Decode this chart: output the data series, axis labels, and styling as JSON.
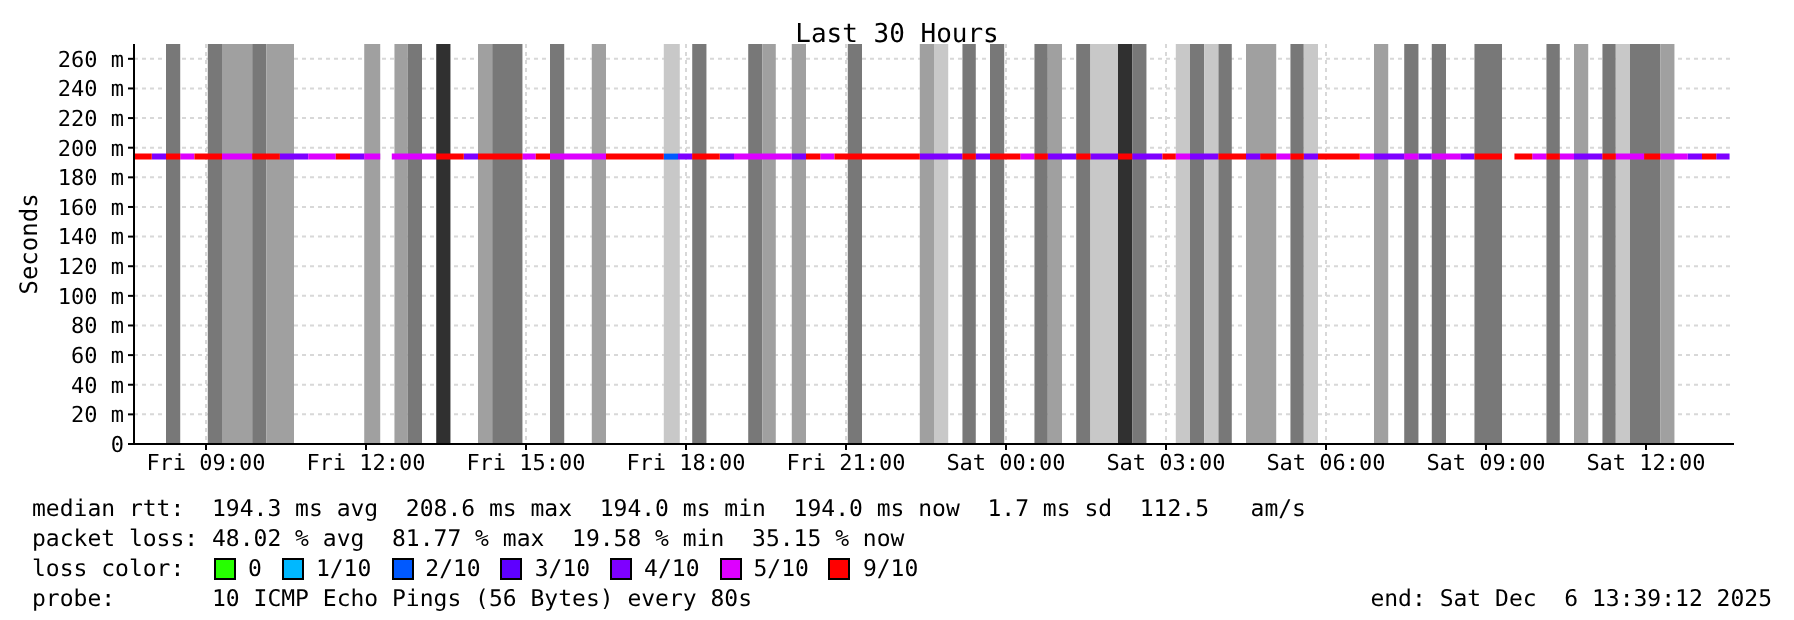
{
  "chart_data": {
    "type": "line",
    "title": "Last 30 Hours",
    "ylabel": "Seconds",
    "legend_title": "loss color:",
    "legend": "bottom",
    "grid": true,
    "marker": "none",
    "line_style": "solid",
    "xlim": [
      "2025-12-05T07:39",
      "2025-12-06T13:39"
    ],
    "xticks": [
      {
        "value": "2025-12-05T09:00",
        "label": "Fri 09:00"
      },
      {
        "value": "2025-12-05T12:00",
        "label": "Fri 12:00"
      },
      {
        "value": "2025-12-05T15:00",
        "label": "Fri 15:00"
      },
      {
        "value": "2025-12-05T18:00",
        "label": "Fri 18:00"
      },
      {
        "value": "2025-12-05T21:00",
        "label": "Fri 21:00"
      },
      {
        "value": "2025-12-06T00:00",
        "label": "Sat 00:00"
      },
      {
        "value": "2025-12-06T03:00",
        "label": "Sat 03:00"
      },
      {
        "value": "2025-12-06T06:00",
        "label": "Sat 06:00"
      },
      {
        "value": "2025-12-06T09:00",
        "label": "Sat 09:00"
      },
      {
        "value": "2025-12-06T12:00",
        "label": "Sat 12:00"
      }
    ],
    "ylim": [
      0,
      270
    ],
    "yticks": [
      0,
      {
        "value": 20,
        "label": "20 m"
      },
      {
        "value": 40,
        "label": "40 m"
      },
      {
        "value": 60,
        "label": "60 m"
      },
      {
        "value": 80,
        "label": "80 m"
      },
      {
        "value": 100,
        "label": "100 m"
      },
      {
        "value": 120,
        "label": "120 m"
      },
      {
        "value": 140,
        "label": "140 m"
      },
      {
        "value": 160,
        "label": "160 m"
      },
      {
        "value": 180,
        "label": "180 m"
      },
      {
        "value": 200,
        "label": "200 m"
      },
      {
        "value": 220,
        "label": "220 m"
      },
      {
        "value": 240,
        "label": "240 m"
      },
      {
        "value": 260,
        "label": "260 m"
      }
    ],
    "series": [
      {
        "name": "0",
        "color": "#26ff00"
      },
      {
        "name": "1/10",
        "color": "#00b8ff"
      },
      {
        "name": "2/10",
        "color": "#0059ff",
        "x": [
          "2025-12-05T17:35",
          "2025-12-05T17:51"
        ],
        "values": [
          194,
          194
        ]
      },
      {
        "name": "3/10",
        "color": "#5e00ff"
      },
      {
        "name": "4/10",
        "color": "#7e00ff",
        "x": [
          "2025-12-05T07:59",
          "2025-12-05T08:15",
          null,
          "2025-12-05T10:23",
          "2025-12-05T10:55",
          null,
          "2025-12-05T11:42",
          "2025-12-05T11:58",
          null,
          "2025-12-05T13:50",
          "2025-12-05T14:06",
          null,
          "2025-12-05T17:51",
          "2025-12-05T18:07",
          null,
          "2025-12-05T18:38",
          "2025-12-05T18:54",
          null,
          "2025-12-05T19:59",
          "2025-12-05T20:15",
          null,
          "2025-12-05T22:23",
          "2025-12-05T23:11",
          null,
          "2025-12-05T23:26",
          "2025-12-05T23:42",
          null,
          "2025-12-06T00:47",
          "2025-12-06T01:19",
          null,
          "2025-12-06T01:35",
          "2025-12-06T02:06",
          null,
          "2025-12-06T02:22",
          "2025-12-06T02:56",
          null,
          "2025-12-06T03:27",
          "2025-12-06T03:59",
          null,
          "2025-12-06T04:30",
          "2025-12-06T04:46",
          null,
          "2025-12-06T05:35",
          "2025-12-06T05:51",
          null,
          "2025-12-06T06:54",
          "2025-12-06T07:28",
          null,
          "2025-12-06T07:44",
          "2025-12-06T07:59",
          null,
          "2025-12-06T08:31",
          "2025-12-06T08:47",
          null,
          "2025-12-06T10:39",
          "2025-12-06T11:11",
          null,
          "2025-12-06T12:47",
          "2025-12-06T13:03",
          null,
          "2025-12-06T13:19",
          "2025-12-06T13:34"
        ],
        "values": [
          194,
          194,
          null,
          194,
          194,
          null,
          194,
          194,
          null,
          194,
          194,
          null,
          194,
          194,
          null,
          194,
          194,
          null,
          194,
          194,
          null,
          194,
          194,
          null,
          194,
          194,
          null,
          194,
          194,
          null,
          194,
          194,
          null,
          194,
          194,
          null,
          194,
          194,
          null,
          194,
          194,
          null,
          194,
          194,
          null,
          194,
          194,
          null,
          194,
          194,
          null,
          194,
          194,
          null,
          194,
          194,
          null,
          194,
          194,
          null,
          194,
          194
        ]
      },
      {
        "name": "5/10",
        "color": "#dd00ff",
        "x": [
          "2025-12-05T08:31",
          "2025-12-05T08:47",
          null,
          "2025-12-05T09:18",
          "2025-12-05T09:52",
          null,
          "2025-12-05T10:55",
          "2025-12-05T11:26",
          null,
          "2025-12-05T11:58",
          "2025-12-05T12:16",
          null,
          "2025-12-05T12:29",
          "2025-12-05T13:19",
          null,
          "2025-12-05T14:56",
          "2025-12-05T15:11",
          null,
          "2025-12-05T15:27",
          "2025-12-05T16:30",
          null,
          "2025-12-05T18:54",
          "2025-12-05T19:59",
          null,
          "2025-12-05T20:31",
          "2025-12-05T20:47",
          null,
          "2025-12-06T00:16",
          "2025-12-06T00:32",
          null,
          "2025-12-06T03:11",
          "2025-12-06T03:27",
          null,
          "2025-12-06T05:04",
          "2025-12-06T05:20",
          null,
          "2025-12-06T06:38",
          "2025-12-06T06:54",
          null,
          "2025-12-06T07:28",
          "2025-12-06T07:44",
          null,
          "2025-12-06T07:59",
          "2025-12-06T08:31",
          null,
          "2025-12-06T09:52",
          "2025-12-06T10:08",
          null,
          "2025-12-06T10:23",
          "2025-12-06T10:39",
          null,
          "2025-12-06T11:26",
          "2025-12-06T11:58",
          null,
          "2025-12-06T12:16",
          "2025-12-06T12:47"
        ],
        "values": [
          194,
          194,
          null,
          194,
          194,
          null,
          194,
          194,
          null,
          194,
          194,
          null,
          194,
          194,
          null,
          194,
          194,
          null,
          194,
          194,
          null,
          194,
          194,
          null,
          194,
          194,
          null,
          194,
          194,
          null,
          194,
          194,
          null,
          194,
          194,
          null,
          194,
          194,
          null,
          194,
          194,
          null,
          194,
          194,
          null,
          194,
          194,
          null,
          194,
          194,
          null,
          194,
          194,
          null,
          194,
          194
        ]
      },
      {
        "name": "9/10",
        "color": "#ff0000",
        "x": [
          "2025-12-05T07:39",
          "2025-12-05T07:59",
          null,
          "2025-12-05T08:15",
          "2025-12-05T08:31",
          null,
          "2025-12-05T08:47",
          "2025-12-05T09:18",
          null,
          "2025-12-05T09:52",
          "2025-12-05T10:23",
          null,
          "2025-12-05T11:26",
          "2025-12-05T11:42",
          null,
          "2025-12-05T13:19",
          "2025-12-05T13:50",
          null,
          "2025-12-05T14:06",
          "2025-12-05T14:56",
          null,
          "2025-12-05T15:11",
          "2025-12-05T15:27",
          null,
          "2025-12-05T16:30",
          "2025-12-05T17:35",
          null,
          "2025-12-05T18:07",
          "2025-12-05T18:38",
          null,
          "2025-12-05T20:15",
          "2025-12-05T20:31",
          null,
          "2025-12-05T20:47",
          "2025-12-05T22:23",
          null,
          "2025-12-05T23:11",
          "2025-12-05T23:26",
          null,
          "2025-12-05T23:42",
          "2025-12-06T00:16",
          null,
          "2025-12-06T00:32",
          "2025-12-06T00:47",
          null,
          "2025-12-06T01:19",
          "2025-12-06T01:35",
          null,
          "2025-12-06T02:06",
          "2025-12-06T02:22",
          null,
          "2025-12-06T02:56",
          "2025-12-06T03:11",
          null,
          "2025-12-06T03:59",
          "2025-12-06T04:30",
          null,
          "2025-12-06T04:46",
          "2025-12-06T05:04",
          null,
          "2025-12-06T05:20",
          "2025-12-06T05:35",
          null,
          "2025-12-06T05:51",
          "2025-12-06T06:38",
          null,
          "2025-12-06T08:47",
          "2025-12-06T09:18",
          null,
          "2025-12-06T09:32",
          "2025-12-06T09:52",
          null,
          "2025-12-06T10:08",
          "2025-12-06T10:23",
          null,
          "2025-12-06T11:11",
          "2025-12-06T11:26",
          null,
          "2025-12-06T11:58",
          "2025-12-06T12:16",
          null,
          "2025-12-06T13:03",
          "2025-12-06T13:19"
        ],
        "values": [
          194,
          194,
          null,
          194,
          194,
          null,
          194,
          194,
          null,
          194,
          194,
          null,
          194,
          194,
          null,
          194,
          194,
          null,
          194,
          194,
          null,
          194,
          194,
          null,
          194,
          194,
          null,
          194,
          194,
          null,
          194,
          194,
          null,
          194,
          194,
          null,
          194,
          194,
          null,
          194,
          194,
          null,
          194,
          194,
          null,
          194,
          194,
          null,
          194,
          194,
          null,
          194,
          194,
          null,
          194,
          194,
          null,
          194,
          194,
          null,
          194,
          194,
          null,
          194,
          194,
          null,
          194,
          194,
          null,
          194,
          194,
          null,
          194,
          194,
          null,
          194,
          194,
          null,
          194,
          194,
          null,
          194,
          194
        ]
      }
    ],
    "bands": [
      {
        "axis": "x",
        "from": "2025-12-05T08:15",
        "to": "2025-12-05T08:31",
        "color": "#787878"
      },
      {
        "axis": "x",
        "from": "2025-12-05T09:02",
        "to": "2025-12-05T09:18",
        "color": "#787878"
      },
      {
        "axis": "x",
        "from": "2025-12-05T09:18",
        "to": "2025-12-05T09:52",
        "color": "#a0a0a0"
      },
      {
        "axis": "x",
        "from": "2025-12-05T09:52",
        "to": "2025-12-05T10:08",
        "color": "#787878"
      },
      {
        "axis": "x",
        "from": "2025-12-05T10:08",
        "to": "2025-12-05T10:39",
        "color": "#a0a0a0"
      },
      {
        "axis": "x",
        "from": "2025-12-05T11:58",
        "to": "2025-12-05T12:16",
        "color": "#a0a0a0"
      },
      {
        "axis": "x",
        "from": "2025-12-05T12:32",
        "to": "2025-12-05T12:47",
        "color": "#a0a0a0"
      },
      {
        "axis": "x",
        "from": "2025-12-05T12:47",
        "to": "2025-12-05T13:03",
        "color": "#787878"
      },
      {
        "axis": "x",
        "from": "2025-12-05T13:19",
        "to": "2025-12-05T13:35",
        "color": "#303030"
      },
      {
        "axis": "x",
        "from": "2025-12-05T14:06",
        "to": "2025-12-05T14:22",
        "color": "#a0a0a0"
      },
      {
        "axis": "x",
        "from": "2025-12-05T14:22",
        "to": "2025-12-05T14:56",
        "color": "#787878"
      },
      {
        "axis": "x",
        "from": "2025-12-05T15:27",
        "to": "2025-12-05T15:43",
        "color": "#787878"
      },
      {
        "axis": "x",
        "from": "2025-12-05T16:14",
        "to": "2025-12-05T16:30",
        "color": "#a0a0a0"
      },
      {
        "axis": "x",
        "from": "2025-12-05T17:35",
        "to": "2025-12-05T17:53",
        "color": "#c8c8c8"
      },
      {
        "axis": "x",
        "from": "2025-12-05T18:07",
        "to": "2025-12-05T18:23",
        "color": "#787878"
      },
      {
        "axis": "x",
        "from": "2025-12-05T19:10",
        "to": "2025-12-05T19:26",
        "color": "#787878"
      },
      {
        "axis": "x",
        "from": "2025-12-05T19:26",
        "to": "2025-12-05T19:41",
        "color": "#a0a0a0"
      },
      {
        "axis": "x",
        "from": "2025-12-05T19:59",
        "to": "2025-12-05T20:15",
        "color": "#a0a0a0"
      },
      {
        "axis": "x",
        "from": "2025-12-05T21:02",
        "to": "2025-12-05T21:18",
        "color": "#787878"
      },
      {
        "axis": "x",
        "from": "2025-12-05T22:23",
        "to": "2025-12-05T22:39",
        "color": "#a0a0a0"
      },
      {
        "axis": "x",
        "from": "2025-12-05T22:39",
        "to": "2025-12-05T22:55",
        "color": "#c8c8c8"
      },
      {
        "axis": "x",
        "from": "2025-12-05T23:11",
        "to": "2025-12-05T23:26",
        "color": "#787878"
      },
      {
        "axis": "x",
        "from": "2025-12-05T23:42",
        "to": "2025-12-05T23:58",
        "color": "#787878"
      },
      {
        "axis": "x",
        "from": "2025-12-06T00:32",
        "to": "2025-12-06T00:47",
        "color": "#787878"
      },
      {
        "axis": "x",
        "from": "2025-12-06T00:47",
        "to": "2025-12-06T01:03",
        "color": "#a0a0a0"
      },
      {
        "axis": "x",
        "from": "2025-12-06T01:19",
        "to": "2025-12-06T01:35",
        "color": "#787878"
      },
      {
        "axis": "x",
        "from": "2025-12-06T01:35",
        "to": "2025-12-06T02:06",
        "color": "#c8c8c8"
      },
      {
        "axis": "x",
        "from": "2025-12-06T02:06",
        "to": "2025-12-06T02:22",
        "color": "#303030"
      },
      {
        "axis": "x",
        "from": "2025-12-06T02:22",
        "to": "2025-12-06T02:38",
        "color": "#787878"
      },
      {
        "axis": "x",
        "from": "2025-12-06T03:11",
        "to": "2025-12-06T03:27",
        "color": "#c8c8c8"
      },
      {
        "axis": "x",
        "from": "2025-12-06T03:27",
        "to": "2025-12-06T03:43",
        "color": "#787878"
      },
      {
        "axis": "x",
        "from": "2025-12-06T03:43",
        "to": "2025-12-06T03:59",
        "color": "#c8c8c8"
      },
      {
        "axis": "x",
        "from": "2025-12-06T03:59",
        "to": "2025-12-06T04:14",
        "color": "#787878"
      },
      {
        "axis": "x",
        "from": "2025-12-06T04:30",
        "to": "2025-12-06T05:04",
        "color": "#a0a0a0"
      },
      {
        "axis": "x",
        "from": "2025-12-06T05:20",
        "to": "2025-12-06T05:35",
        "color": "#787878"
      },
      {
        "axis": "x",
        "from": "2025-12-06T05:35",
        "to": "2025-12-06T05:51",
        "color": "#c8c8c8"
      },
      {
        "axis": "x",
        "from": "2025-12-06T06:54",
        "to": "2025-12-06T07:10",
        "color": "#a0a0a0"
      },
      {
        "axis": "x",
        "from": "2025-12-06T07:28",
        "to": "2025-12-06T07:44",
        "color": "#787878"
      },
      {
        "axis": "x",
        "from": "2025-12-06T07:59",
        "to": "2025-12-06T08:15",
        "color": "#787878"
      },
      {
        "axis": "x",
        "from": "2025-12-06T08:47",
        "to": "2025-12-06T09:18",
        "color": "#787878"
      },
      {
        "axis": "x",
        "from": "2025-12-06T10:08",
        "to": "2025-12-06T10:23",
        "color": "#787878"
      },
      {
        "axis": "x",
        "from": "2025-12-06T10:39",
        "to": "2025-12-06T10:55",
        "color": "#a0a0a0"
      },
      {
        "axis": "x",
        "from": "2025-12-06T11:11",
        "to": "2025-12-06T11:26",
        "color": "#787878"
      },
      {
        "axis": "x",
        "from": "2025-12-06T11:26",
        "to": "2025-12-06T11:42",
        "color": "#c8c8c8"
      },
      {
        "axis": "x",
        "from": "2025-12-06T11:42",
        "to": "2025-12-06T12:16",
        "color": "#787878"
      },
      {
        "axis": "x",
        "from": "2025-12-06T12:16",
        "to": "2025-12-06T12:32",
        "color": "#a0a0a0"
      }
    ],
    "annotations": [
      "median rtt:  194.3 ms avg  208.6 ms max  194.0 ms min  194.0 ms now  1.7 ms sd  112.5   am/s",
      "packet loss: 48.02 % avg  81.77 % max  19.58 % min  35.15 % now",
      "probe:       10 ICMP Echo Pings (56 Bytes) every 80s",
      "end: Sat Dec  6 13:39:12 2025"
    ]
  }
}
